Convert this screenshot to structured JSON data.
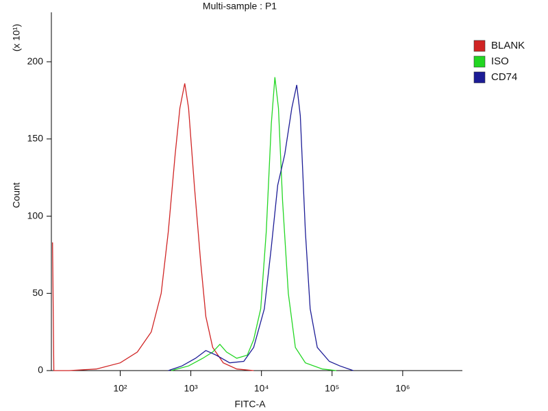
{
  "chart_data": {
    "type": "line",
    "title": "Multi-sample : P1",
    "x_label": "FITC-A",
    "y_label": "Count",
    "y_multiplier": "(x 10¹)",
    "xscale": "log",
    "xlim": [
      10.6,
      7000000
    ],
    "ylim": [
      0,
      232
    ],
    "xticks": [
      {
        "value": 100,
        "label": "10²"
      },
      {
        "value": 1000,
        "label": "10³"
      },
      {
        "value": 10000,
        "label": "10⁴"
      },
      {
        "value": 100000,
        "label": "10⁵"
      },
      {
        "value": 1000000,
        "label": "10⁶"
      }
    ],
    "yticks": [
      0,
      50,
      100,
      150,
      200
    ],
    "series": [
      {
        "name": "BLANK",
        "color": "#d02424",
        "x": [
          11,
          11.5,
          19,
          46,
          100,
          175,
          275,
          380,
          480,
          600,
          700,
          820,
          930,
          1120,
          1380,
          1630,
          2040,
          2880,
          4470,
          7760
        ],
        "values": [
          83,
          0,
          0,
          1,
          5,
          12,
          25,
          50,
          90,
          140,
          170,
          186,
          170,
          120,
          70,
          35,
          15,
          5,
          1,
          0
        ]
      },
      {
        "name": "ISO",
        "color": "#22d622",
        "x": [
          530,
          930,
          1480,
          2040,
          2580,
          3200,
          4470,
          6300,
          7760,
          9770,
          11700,
          13800,
          15500,
          17400,
          19900,
          24000,
          30200,
          41900,
          72900,
          115000
        ],
        "values": [
          0,
          3,
          8,
          12,
          17,
          12,
          8,
          10,
          20,
          40,
          90,
          160,
          190,
          170,
          110,
          50,
          15,
          5,
          1,
          0
        ]
      },
      {
        "name": "CD74",
        "color": "#1c1c96",
        "x": [
          480,
          750,
          1170,
          1630,
          2290,
          3550,
          5620,
          7760,
          11000,
          13800,
          17000,
          21400,
          26900,
          31600,
          35500,
          41900,
          49000,
          61700,
          91200,
          129000,
          200000
        ],
        "values": [
          0,
          3,
          8,
          13,
          10,
          5,
          6,
          15,
          40,
          80,
          120,
          140,
          170,
          185,
          165,
          90,
          40,
          15,
          6,
          3,
          0
        ]
      }
    ]
  }
}
